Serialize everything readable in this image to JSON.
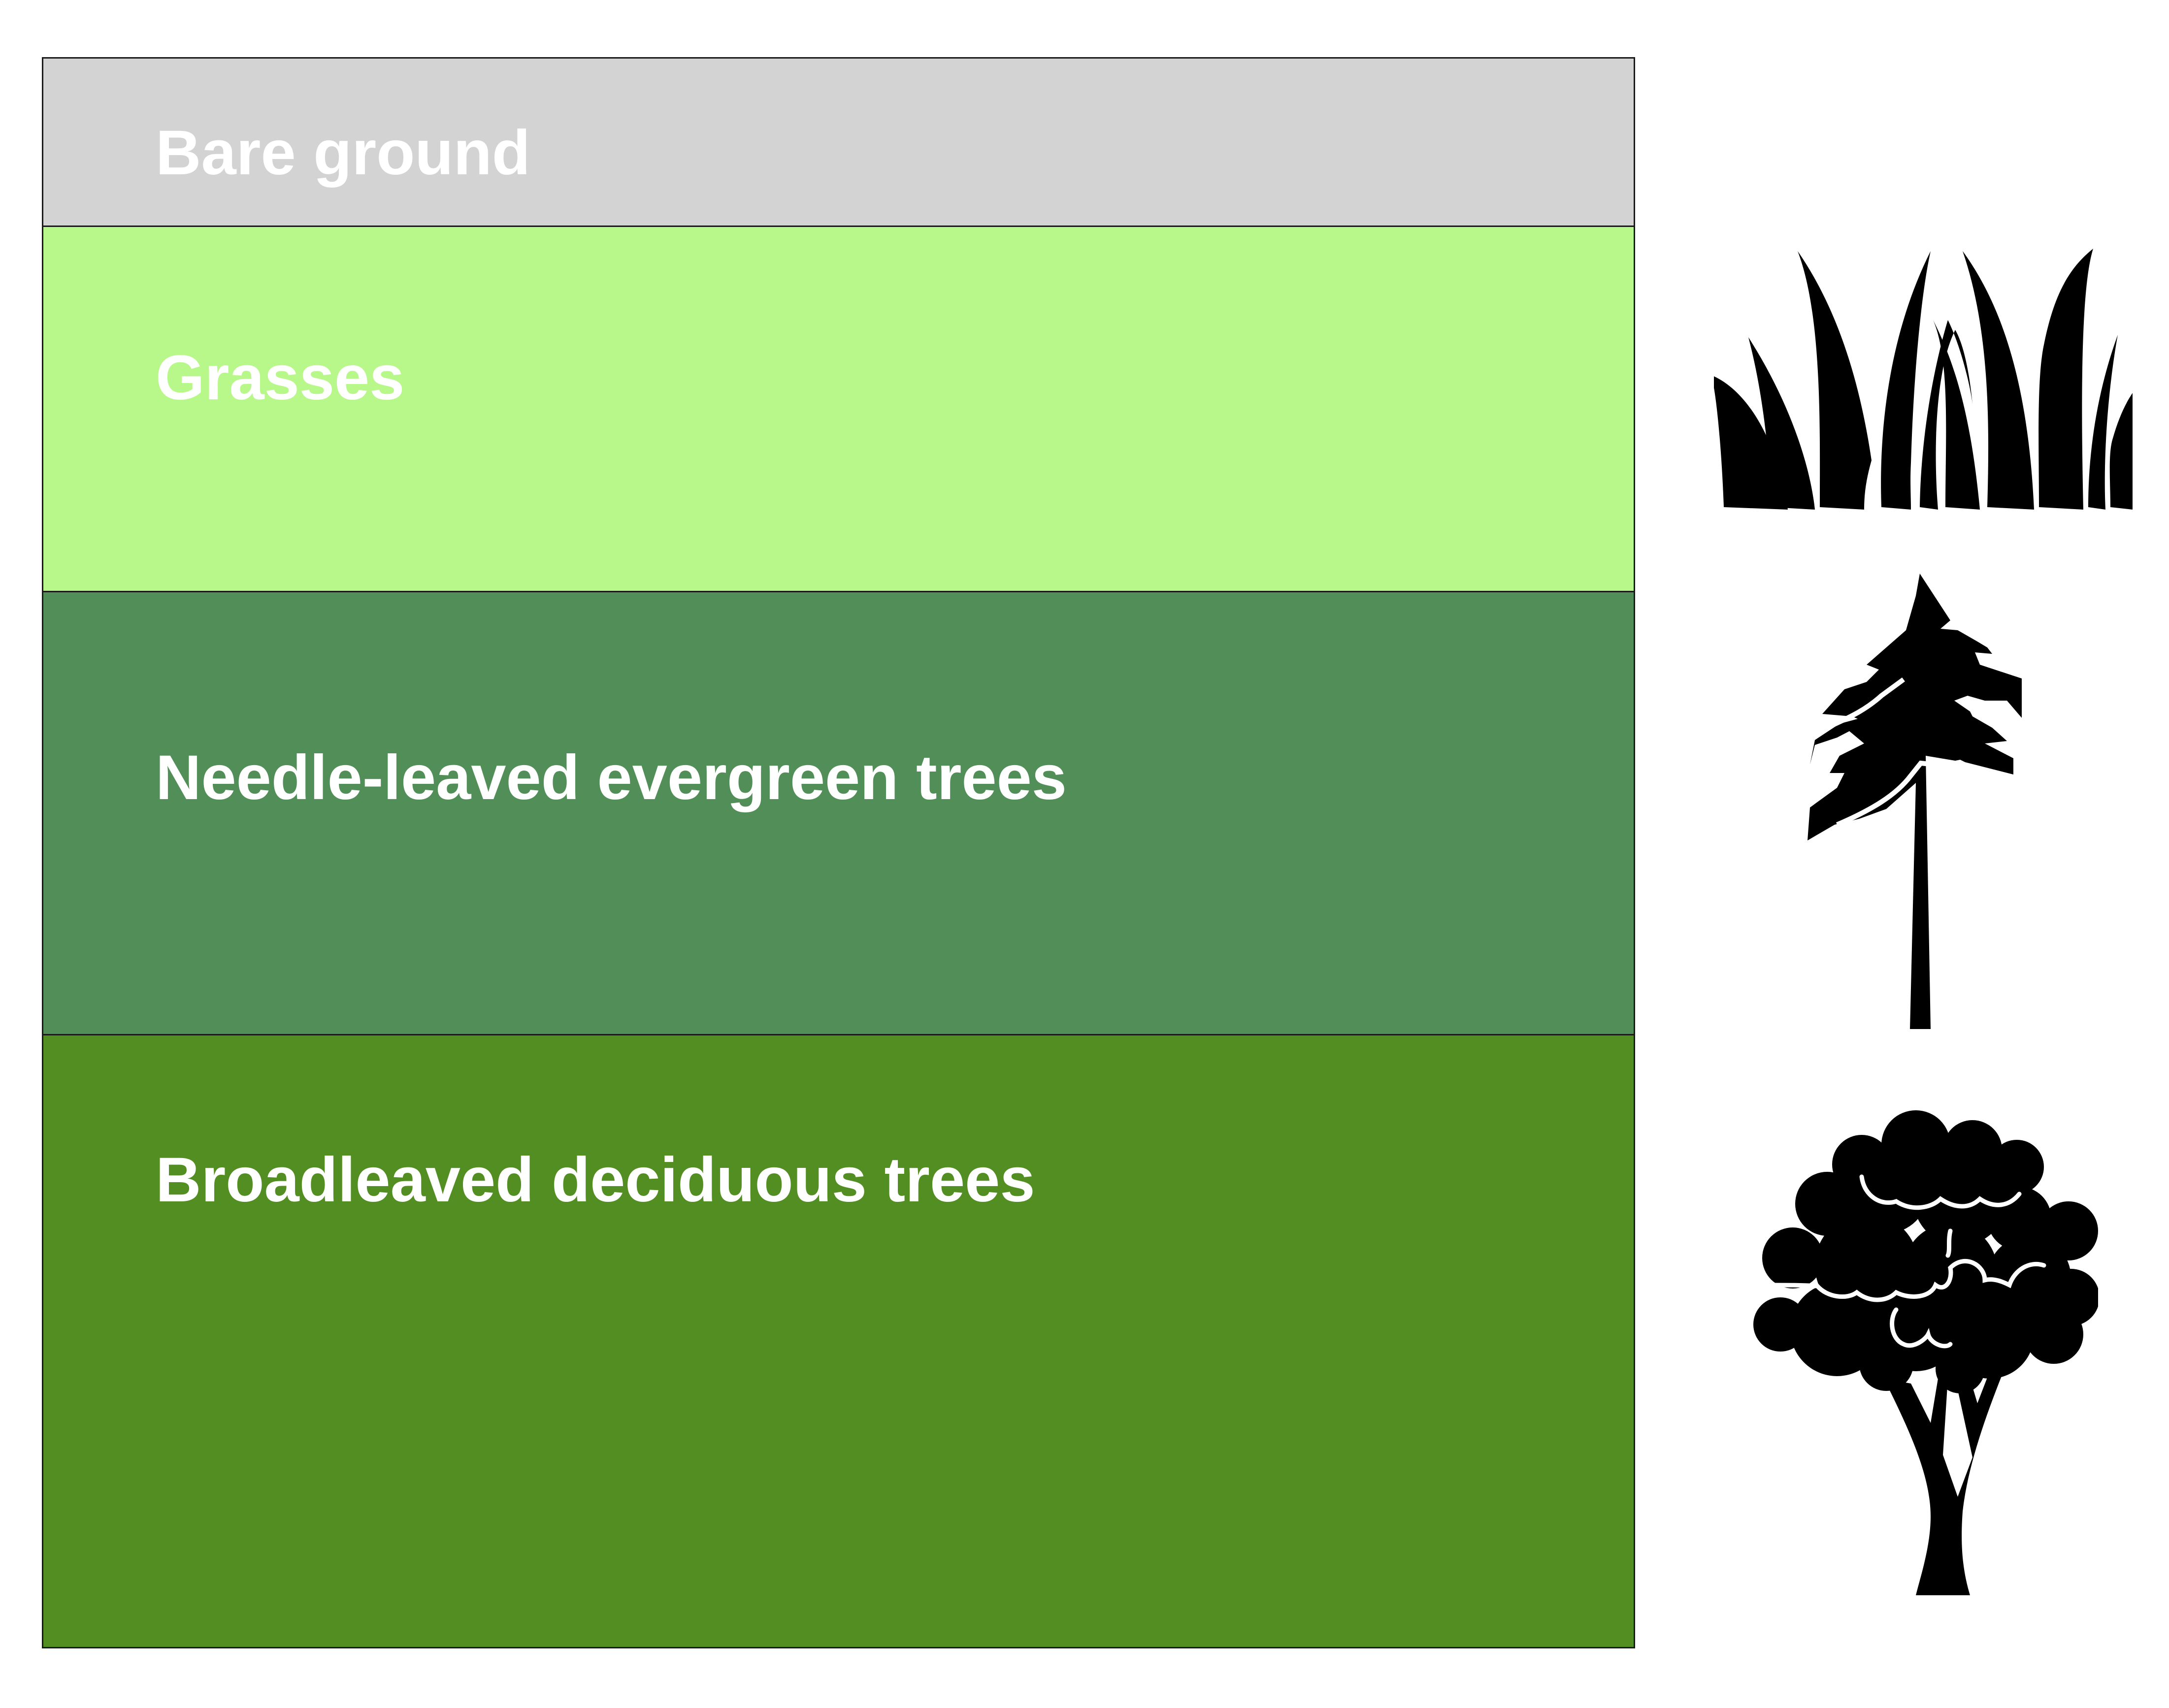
{
  "bands": [
    {
      "label": "Bare ground",
      "color": "#d3d3d3"
    },
    {
      "label": "Grasses",
      "color": "#b8f88a"
    },
    {
      "label": "Needle-leaved evergreen trees",
      "color": "#528e58"
    },
    {
      "label": "Broadleaved deciduous trees",
      "color": "#528e22"
    }
  ],
  "icons": [
    "grass-icon",
    "pine-tree-icon",
    "broadleaf-tree-icon"
  ]
}
